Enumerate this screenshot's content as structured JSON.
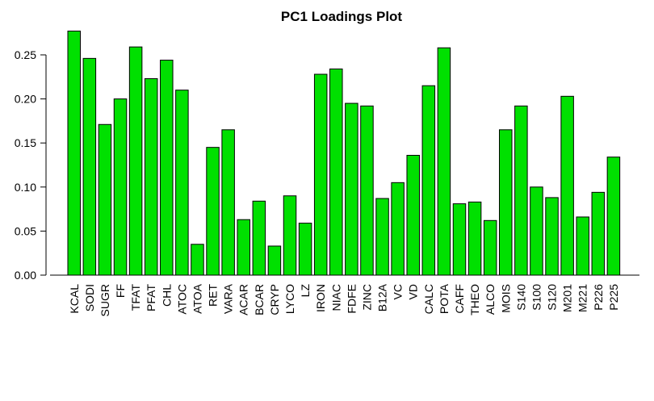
{
  "chart_data": {
    "type": "bar",
    "title": "PC1 Loadings Plot",
    "xlabel": "",
    "ylabel": "",
    "ylim": [
      0,
      0.28
    ],
    "yticks": [
      "0.00",
      "0.05",
      "0.10",
      "0.15",
      "0.20",
      "0.25"
    ],
    "bar_color": "#00e000",
    "categories": [
      "KCAL",
      "SODI",
      "SUGR",
      "FF",
      "TFAT",
      "PFAT",
      "CHL",
      "ATOC",
      "ATOA",
      "RET",
      "VARA",
      "ACAR",
      "BCAR",
      "CRYP",
      "LYCO",
      "LZ",
      "IRON",
      "NIAC",
      "FDFE",
      "ZINC",
      "B12A",
      "VC",
      "VD",
      "CALC",
      "POTA",
      "CAFF",
      "THEO",
      "ALCO",
      "MOIS",
      "S140",
      "S100",
      "S120",
      "M201",
      "M221",
      "P226",
      "P225"
    ],
    "values": [
      0.277,
      0.246,
      0.171,
      0.2,
      0.259,
      0.223,
      0.244,
      0.21,
      0.035,
      0.145,
      0.165,
      0.063,
      0.084,
      0.033,
      0.09,
      0.059,
      0.228,
      0.234,
      0.195,
      0.192,
      0.087,
      0.105,
      0.136,
      0.215,
      0.258,
      0.081,
      0.083,
      0.062,
      0.165,
      0.192,
      0.1,
      0.088,
      0.203,
      0.066,
      0.094,
      0.134
    ]
  }
}
